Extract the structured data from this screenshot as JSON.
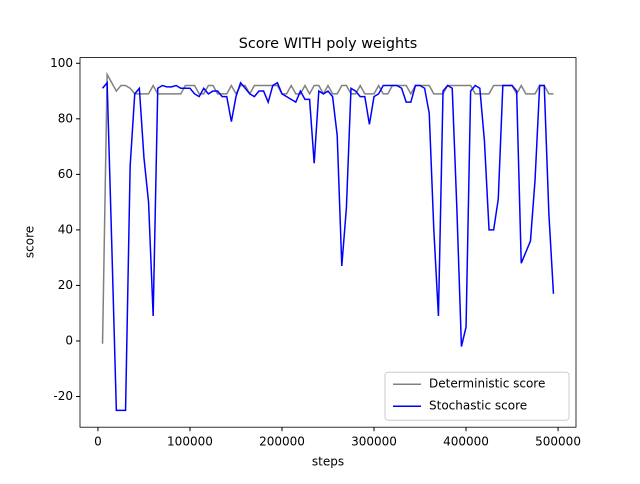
{
  "chart_data": {
    "type": "line",
    "title": "Score WITH poly weights",
    "x_label": "steps",
    "y_label": "score",
    "x": [
      5000,
      10000,
      15000,
      20000,
      25000,
      30000,
      35000,
      40000,
      45000,
      50000,
      55000,
      60000,
      65000,
      70000,
      75000,
      80000,
      85000,
      90000,
      95000,
      100000,
      105000,
      110000,
      115000,
      120000,
      125000,
      130000,
      135000,
      140000,
      145000,
      150000,
      155000,
      160000,
      165000,
      170000,
      175000,
      180000,
      185000,
      190000,
      195000,
      200000,
      205000,
      210000,
      215000,
      220000,
      225000,
      230000,
      235000,
      240000,
      245000,
      250000,
      255000,
      260000,
      265000,
      270000,
      275000,
      280000,
      285000,
      290000,
      295000,
      300000,
      305000,
      310000,
      315000,
      320000,
      325000,
      330000,
      335000,
      340000,
      345000,
      350000,
      355000,
      360000,
      365000,
      370000,
      375000,
      380000,
      385000,
      390000,
      395000,
      400000,
      405000,
      410000,
      415000,
      420000,
      425000,
      430000,
      435000,
      440000,
      445000,
      450000,
      455000,
      460000,
      465000,
      470000,
      475000,
      480000,
      485000,
      490000,
      495000
    ],
    "series": [
      {
        "name": "Deterministic score",
        "color": "#808080",
        "values": [
          -1,
          96,
          93,
          90,
          92,
          92,
          91,
          89,
          89,
          89,
          89,
          92,
          89,
          89,
          89,
          89,
          89,
          89,
          92,
          92,
          92,
          89,
          89,
          92,
          92,
          89,
          89,
          89,
          92,
          89,
          92,
          92,
          89,
          92,
          92,
          92,
          92,
          92,
          92,
          89,
          89,
          92,
          89,
          89,
          92,
          89,
          92,
          92,
          89,
          92,
          89,
          89,
          92,
          92,
          89,
          89,
          92,
          89,
          89,
          89,
          92,
          89,
          89,
          92,
          92,
          92,
          92,
          89,
          92,
          92,
          92,
          92,
          89,
          89,
          89,
          92,
          92,
          92,
          92,
          92,
          92,
          89,
          89,
          89,
          89,
          92,
          92,
          92,
          92,
          92,
          89,
          92,
          89,
          89,
          89,
          92,
          92,
          89,
          89
        ]
      },
      {
        "name": "Stochastic score",
        "color": "#0000ff",
        "values": [
          91,
          93,
          35,
          -25,
          -25,
          -25,
          63,
          89,
          91,
          66,
          50,
          9,
          91,
          92,
          91.5,
          91.5,
          92,
          91,
          91,
          91,
          89,
          88,
          91,
          89,
          90,
          90,
          88,
          88,
          79,
          88,
          93,
          91,
          89,
          88,
          90,
          90,
          86,
          92,
          93,
          89,
          88,
          87,
          86,
          90,
          87,
          87,
          64,
          90,
          89,
          90,
          88,
          74,
          27,
          48,
          91,
          90,
          88,
          88,
          78,
          88,
          89,
          92,
          92,
          92,
          92,
          91,
          86,
          86,
          92,
          92,
          91,
          82,
          40,
          9,
          90,
          92,
          91,
          48,
          -2,
          5,
          90,
          92,
          91,
          72,
          40,
          40,
          51,
          92,
          92,
          92,
          90,
          28,
          32,
          36,
          58,
          92,
          92,
          46,
          17
        ]
      }
    ],
    "xlim": [
      -19500,
      519500
    ],
    "xticks": [
      0,
      100000,
      200000,
      300000,
      400000,
      500000
    ],
    "ylim": [
      -31.05,
      102.05
    ],
    "yticks": [
      -20,
      0,
      20,
      40,
      60,
      80,
      100
    ],
    "legend": "lower right",
    "grid": false
  }
}
